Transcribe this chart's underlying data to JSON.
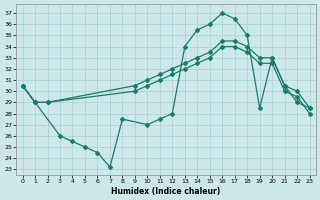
{
  "xlabel": "Humidex (Indice chaleur)",
  "background_color": "#cce8e8",
  "line_color": "#1a7a6e",
  "grid_color": "#aacfcf",
  "xlim": [
    -0.5,
    23.5
  ],
  "ylim": [
    22.5,
    37.8
  ],
  "yticks": [
    23,
    24,
    25,
    26,
    27,
    28,
    29,
    30,
    31,
    32,
    33,
    34,
    35,
    36,
    37
  ],
  "xticks": [
    0,
    1,
    2,
    3,
    4,
    5,
    6,
    7,
    8,
    9,
    10,
    11,
    12,
    13,
    14,
    15,
    16,
    17,
    18,
    19,
    20,
    21,
    22,
    23
  ],
  "line_wavy_x": [
    0,
    1,
    3,
    4,
    5,
    6,
    7,
    8,
    10,
    11,
    12,
    13,
    14,
    15,
    16,
    17,
    18,
    19,
    20,
    21,
    22,
    23
  ],
  "line_wavy_y": [
    30.5,
    29.0,
    26.0,
    25.5,
    25.0,
    24.5,
    23.2,
    27.5,
    27.0,
    27.5,
    28.0,
    34.0,
    35.5,
    36.0,
    37.0,
    36.5,
    35.0,
    28.5,
    33.0,
    30.5,
    29.0,
    28.5
  ],
  "line_upper_x": [
    0,
    1,
    2,
    9,
    10,
    11,
    12,
    13,
    14,
    15,
    16,
    17,
    18,
    19,
    20,
    21,
    22,
    23
  ],
  "line_upper_y": [
    30.5,
    29.0,
    29.0,
    30.5,
    31.0,
    31.5,
    32.0,
    32.5,
    33.0,
    33.5,
    34.5,
    34.5,
    34.0,
    33.0,
    33.0,
    30.5,
    30.0,
    28.5
  ],
  "line_lower_x": [
    0,
    1,
    2,
    9,
    10,
    11,
    12,
    13,
    14,
    15,
    16,
    17,
    18,
    19,
    20,
    21,
    22,
    23
  ],
  "line_lower_y": [
    30.5,
    29.0,
    29.0,
    30.0,
    30.5,
    31.0,
    31.5,
    32.0,
    32.5,
    33.0,
    34.0,
    34.0,
    33.5,
    32.5,
    32.5,
    30.0,
    29.5,
    28.0
  ]
}
